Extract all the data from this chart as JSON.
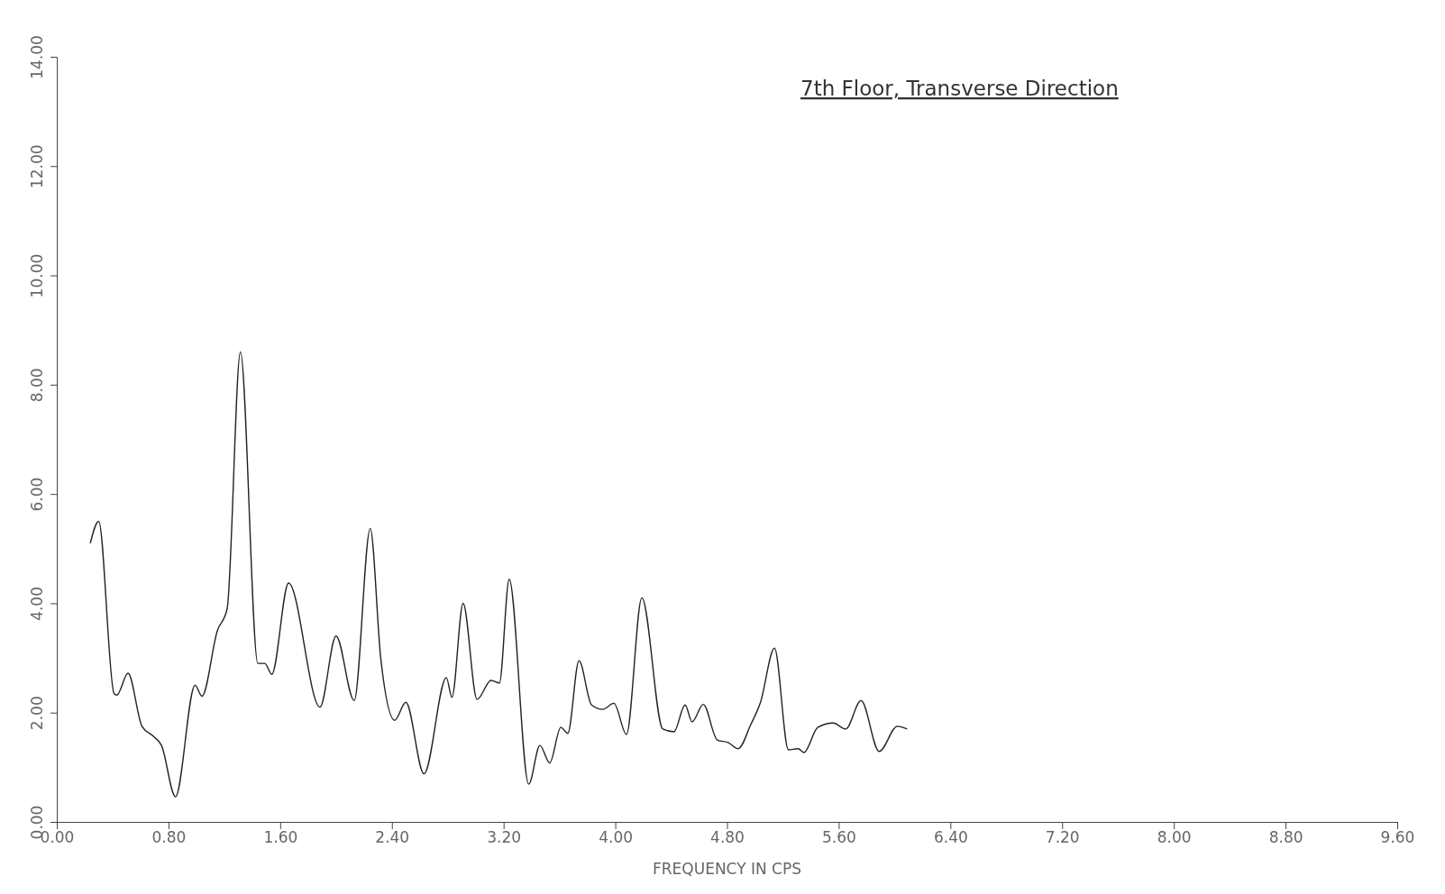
{
  "chart_data": {
    "type": "line",
    "title": "7th Floor, Transverse Direction",
    "xlabel": "FREQUENCY IN CPS",
    "xlim": [
      0,
      9.6
    ],
    "ylim": [
      0,
      14
    ],
    "xticks": [
      {
        "value": 0,
        "label": "0.00"
      },
      {
        "value": 0.8,
        "label": "0.80"
      },
      {
        "value": 1.6,
        "label": "1.60"
      },
      {
        "value": 2.4,
        "label": "2.40"
      },
      {
        "value": 3.2,
        "label": "3.20"
      },
      {
        "value": 4,
        "label": "4.00"
      },
      {
        "value": 4.8,
        "label": "4.80"
      },
      {
        "value": 5.6,
        "label": "5.60"
      },
      {
        "value": 6.4,
        "label": "6.40"
      },
      {
        "value": 7.2,
        "label": "7.20"
      },
      {
        "value": 8,
        "label": "8.00"
      },
      {
        "value": 8.8,
        "label": "8.80"
      },
      {
        "value": 9.6,
        "label": "9.60"
      }
    ],
    "yticks": [
      {
        "value": 0,
        "label": "0.00"
      },
      {
        "value": 2,
        "label": "2.00"
      },
      {
        "value": 4,
        "label": "4.00"
      },
      {
        "value": 6,
        "label": "6.00"
      },
      {
        "value": 8,
        "label": "8.00"
      },
      {
        "value": 10,
        "label": "10.00"
      },
      {
        "value": 12,
        "label": "12.00"
      },
      {
        "value": 14,
        "label": "14.00"
      }
    ],
    "grid": false,
    "marker": "none",
    "line_style": "solid",
    "series": [
      {
        "color": "#222222",
        "x": [
          0.24,
          0.3,
          0.41,
          0.43,
          0.51,
          0.61,
          0.69,
          0.75,
          0.85,
          0.99,
          1.04,
          1.15,
          1.22,
          1.315,
          1.44,
          1.49,
          1.54,
          1.66,
          1.885,
          2.0,
          2.13,
          2.245,
          2.32,
          2.42,
          2.5,
          2.63,
          2.79,
          2.83,
          2.91,
          3.01,
          3.11,
          3.17,
          3.24,
          3.38,
          3.46,
          3.53,
          3.61,
          3.66,
          3.74,
          3.83,
          3.91,
          3.99,
          4.08,
          4.19,
          4.34,
          4.42,
          4.5,
          4.55,
          4.63,
          4.73,
          4.81,
          4.88,
          4.97,
          5.04,
          5.14,
          5.24,
          5.31,
          5.35,
          5.45,
          5.56,
          5.65,
          5.76,
          5.89,
          6.02,
          6.09
        ],
        "values": [
          5.1,
          5.5,
          2.35,
          2.32,
          2.72,
          1.75,
          1.57,
          1.4,
          0.46,
          2.5,
          2.3,
          3.5,
          3.9,
          8.6,
          2.9,
          2.9,
          2.7,
          4.37,
          2.1,
          3.4,
          2.22,
          5.37,
          3.0,
          1.86,
          2.19,
          0.88,
          2.64,
          2.28,
          4.0,
          2.24,
          2.59,
          2.54,
          4.44,
          0.69,
          1.4,
          1.08,
          1.73,
          1.62,
          2.95,
          2.14,
          2.06,
          2.17,
          1.6,
          4.1,
          1.7,
          1.65,
          2.14,
          1.83,
          2.15,
          1.5,
          1.45,
          1.34,
          1.78,
          2.19,
          3.18,
          1.32,
          1.34,
          1.27,
          1.73,
          1.81,
          1.7,
          2.22,
          1.29,
          1.75,
          1.7
        ]
      }
    ]
  }
}
